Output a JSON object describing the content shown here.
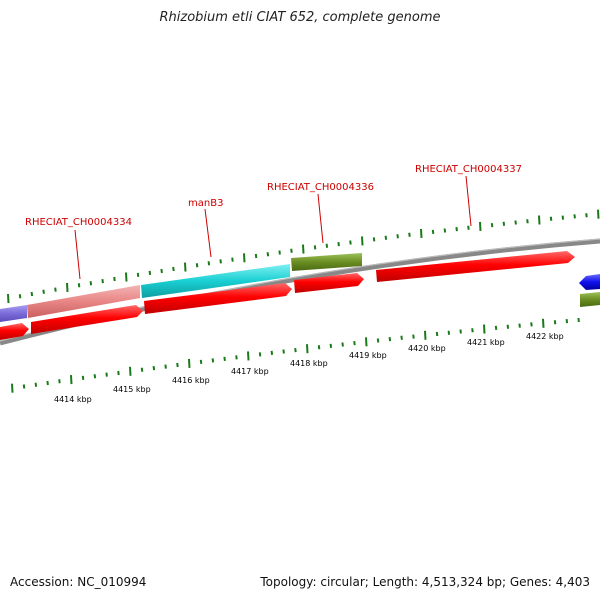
{
  "title": "Rhizobium etli CIAT 652, complete genome",
  "footer": {
    "accession": "Accession: NC_010994",
    "summary": "Topology: circular; Length: 4,513,324 bp; Genes: 4,403"
  },
  "colors": {
    "forward_gene": "#ff0000",
    "reverse_gene": "#ff0000",
    "pink_gene": "#e98585",
    "cyan_gene": "#19cfd2",
    "olive_gene": "#6b8e23",
    "blue_gene": "#1010ee",
    "purple_gene": "#7b6cd9",
    "backbone": "#888888",
    "tick": "#1a7a1a",
    "label": "#cc0000"
  },
  "gene_labels": [
    "RHECIAT_CH0004334",
    "manB3",
    "RHECIAT_CH0004336",
    "RHECIAT_CH0004337"
  ],
  "scale_labels": [
    "4414 kbp",
    "4415 kbp",
    "4416 kbp",
    "4417 kbp",
    "4418 kbp",
    "4419 kbp",
    "4420 kbp",
    "4421 kbp",
    "4422 kbp"
  ]
}
